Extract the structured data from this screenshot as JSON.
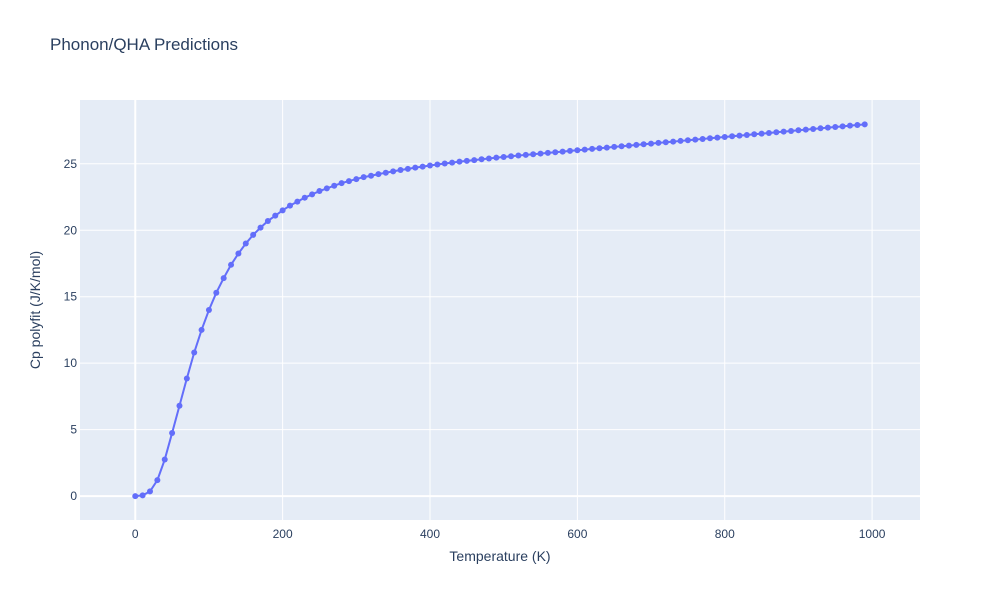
{
  "colors": {
    "plot_bg": "#e5ecf6",
    "grid": "#ffffff",
    "zero_line": "#ffffff",
    "series": "#636efa",
    "text": "#2a3f5f"
  },
  "chart_data": {
    "type": "line",
    "title": "Phonon/QHA Predictions",
    "xlabel": "Temperature (K)",
    "ylabel": "Cp polyfit (J/K/mol)",
    "xlim": [
      -75,
      1065
    ],
    "ylim": [
      -1.8,
      29.8
    ],
    "x_ticks": [
      0,
      200,
      400,
      600,
      800,
      1000
    ],
    "y_ticks": [
      0,
      5,
      10,
      15,
      20,
      25
    ],
    "grid": true,
    "legend": "none",
    "series": [
      {
        "mode": "lines+markers",
        "x": [
          0,
          10,
          20,
          30,
          40,
          50,
          60,
          70,
          80,
          90,
          100,
          110,
          120,
          130,
          140,
          150,
          160,
          170,
          180,
          190,
          200,
          210,
          220,
          230,
          240,
          250,
          260,
          270,
          280,
          290,
          300,
          310,
          320,
          330,
          340,
          350,
          360,
          370,
          380,
          390,
          400,
          410,
          420,
          430,
          440,
          450,
          460,
          470,
          480,
          490,
          500,
          510,
          520,
          530,
          540,
          550,
          560,
          570,
          580,
          590,
          600,
          610,
          620,
          630,
          640,
          650,
          660,
          670,
          680,
          690,
          700,
          710,
          720,
          730,
          740,
          750,
          760,
          770,
          780,
          790,
          800,
          810,
          820,
          830,
          840,
          850,
          860,
          870,
          880,
          890,
          900,
          910,
          920,
          930,
          940,
          950,
          960,
          970,
          980,
          990
        ],
        "y": [
          0,
          0.05,
          0.35,
          1.2,
          2.75,
          4.75,
          6.8,
          8.85,
          10.8,
          12.5,
          14.0,
          15.3,
          16.4,
          17.4,
          18.25,
          19.0,
          19.65,
          20.2,
          20.7,
          21.1,
          21.5,
          21.85,
          22.15,
          22.45,
          22.7,
          22.95,
          23.15,
          23.35,
          23.55,
          23.7,
          23.85,
          24.0,
          24.1,
          24.22,
          24.33,
          24.43,
          24.53,
          24.62,
          24.71,
          24.79,
          24.87,
          24.95,
          25.02,
          25.09,
          25.16,
          25.22,
          25.28,
          25.34,
          25.4,
          25.46,
          25.51,
          25.57,
          25.62,
          25.67,
          25.72,
          25.77,
          25.82,
          25.87,
          25.92,
          25.97,
          26.02,
          26.07,
          26.12,
          26.17,
          26.22,
          26.27,
          26.32,
          26.37,
          26.42,
          26.47,
          26.52,
          26.57,
          26.62,
          26.67,
          26.72,
          26.77,
          26.82,
          26.87,
          26.92,
          26.97,
          27.02,
          27.07,
          27.12,
          27.17,
          27.22,
          27.27,
          27.32,
          27.37,
          27.42,
          27.47,
          27.52,
          27.57,
          27.62,
          27.67,
          27.72,
          27.77,
          27.82,
          27.87,
          27.92,
          27.97
        ]
      }
    ]
  }
}
